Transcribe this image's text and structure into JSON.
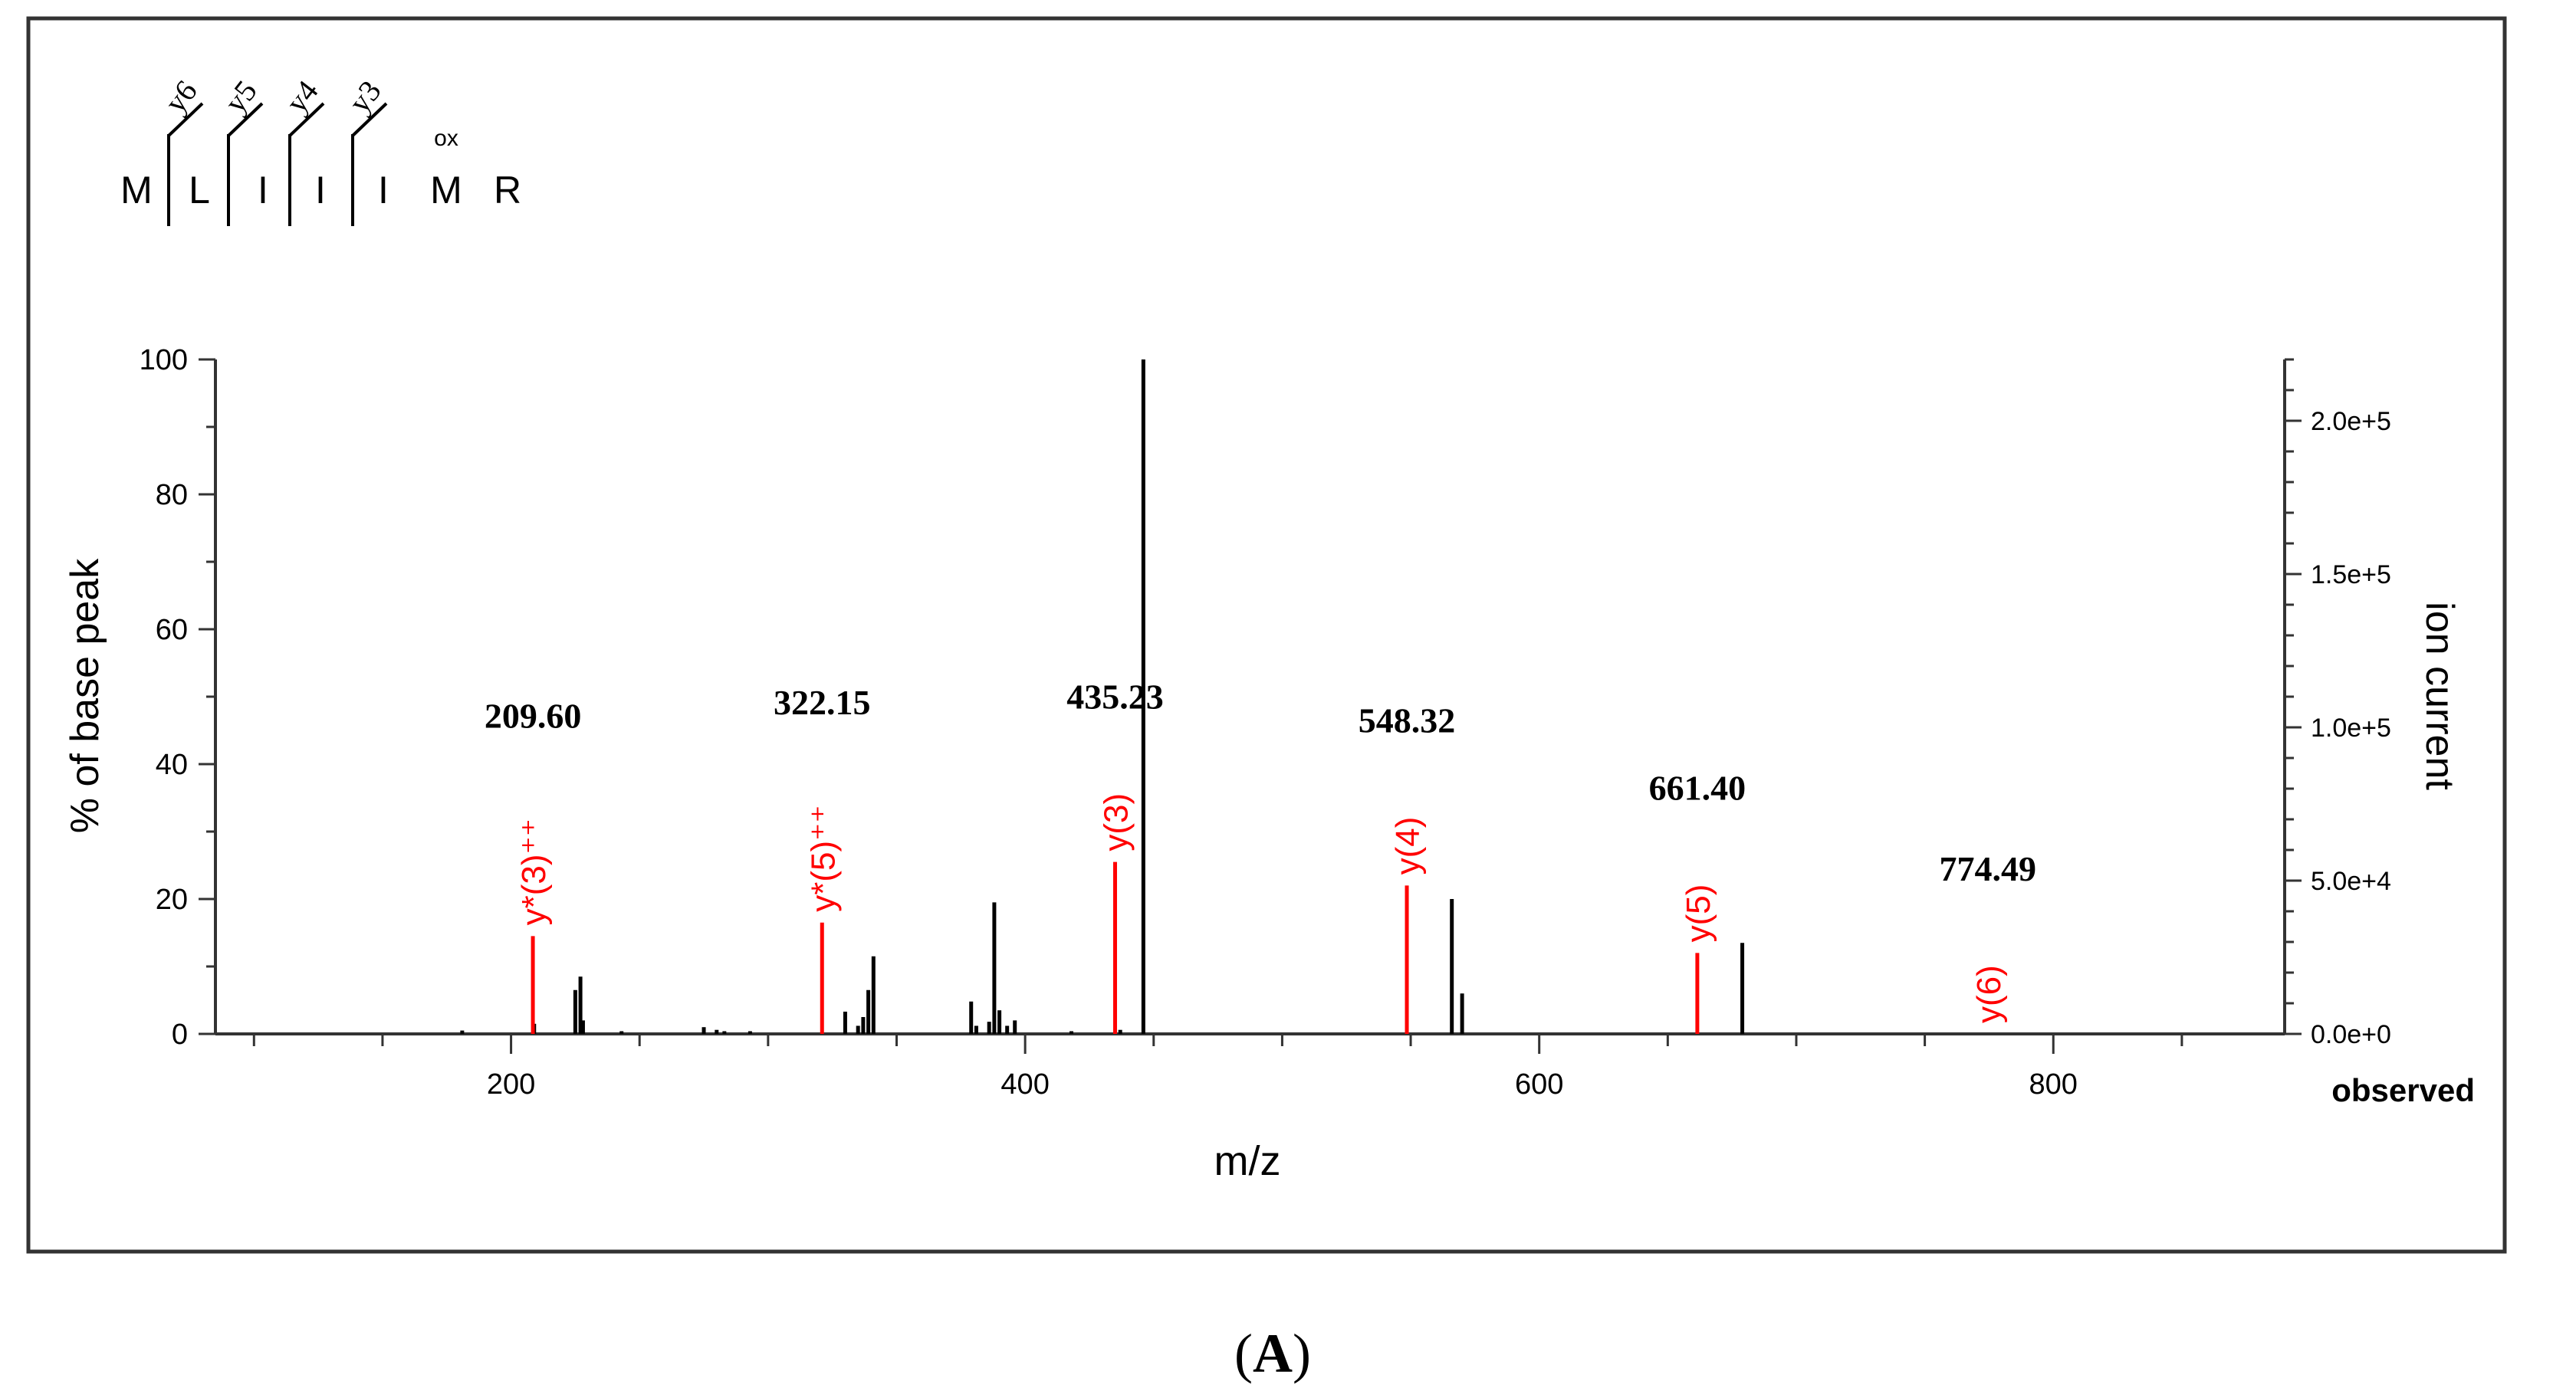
{
  "chart_data": {
    "type": "bar",
    "subtype": "mass-spectrum",
    "panel_label": "(A)",
    "panel_letter": "A",
    "peptide": {
      "residues": [
        "M",
        "L",
        "I",
        "I",
        "I",
        "M",
        "R"
      ],
      "modification": {
        "residue_index": 5,
        "label": "ox"
      },
      "fragment_labels": [
        "y6",
        "y5",
        "y4",
        "y3"
      ]
    },
    "xlabel": "m/z",
    "ylabel_left": "% of base peak",
    "ylabel_right": "ion current",
    "legend_label": "observed",
    "xlim": [
      85,
      890
    ],
    "ylim": [
      0,
      100
    ],
    "y_right_lim": [
      0,
      220000
    ],
    "x_ticks_major": [
      200,
      400,
      600,
      800
    ],
    "x_tick_labels": [
      "200",
      "400",
      "600",
      "800"
    ],
    "x_ticks_minor": [
      100,
      150,
      250,
      300,
      350,
      450,
      500,
      550,
      650,
      700,
      750,
      850
    ],
    "y_ticks": [
      0,
      20,
      40,
      60,
      80,
      100
    ],
    "y_tick_labels": [
      "0",
      "20",
      "40",
      "60",
      "80",
      "100"
    ],
    "y_right_ticks": [
      0,
      50000,
      100000,
      150000,
      200000
    ],
    "y_right_tick_labels": [
      "0.0e+0",
      "5.0e+4",
      "1.0e+5",
      "1.5e+5",
      "2.0e+5"
    ],
    "y_right_minor_step": 10000,
    "colors": {
      "annotated": "#ff0000",
      "observed": "#000000",
      "frame": "#333333"
    },
    "peaks_observed": [
      {
        "mz": 181,
        "i": 0.5
      },
      {
        "mz": 209,
        "i": 1.5
      },
      {
        "mz": 225,
        "i": 6.5
      },
      {
        "mz": 227,
        "i": 8.5
      },
      {
        "mz": 228,
        "i": 2
      },
      {
        "mz": 243,
        "i": 0.4
      },
      {
        "mz": 275,
        "i": 1
      },
      {
        "mz": 280,
        "i": 0.6
      },
      {
        "mz": 283,
        "i": 0.4
      },
      {
        "mz": 293,
        "i": 0.4
      },
      {
        "mz": 330,
        "i": 3.3
      },
      {
        "mz": 335,
        "i": 1.2
      },
      {
        "mz": 337,
        "i": 2.5
      },
      {
        "mz": 339,
        "i": 6.5
      },
      {
        "mz": 341,
        "i": 11.5
      },
      {
        "mz": 379,
        "i": 4.8
      },
      {
        "mz": 381,
        "i": 1.2
      },
      {
        "mz": 386,
        "i": 1.8
      },
      {
        "mz": 388,
        "i": 19.5
      },
      {
        "mz": 390,
        "i": 3.5
      },
      {
        "mz": 393,
        "i": 1.2
      },
      {
        "mz": 396,
        "i": 2
      },
      {
        "mz": 418,
        "i": 0.4
      },
      {
        "mz": 437,
        "i": 0.6
      },
      {
        "mz": 446,
        "i": 100
      },
      {
        "mz": 566,
        "i": 20
      },
      {
        "mz": 570,
        "i": 6
      },
      {
        "mz": 679,
        "i": 13.5
      }
    ],
    "peaks_annotated": [
      {
        "mz": 208.5,
        "i": 14.5,
        "label": "y*(3)⁺⁺",
        "mz_label": "209.60"
      },
      {
        "mz": 321.0,
        "i": 16.5,
        "label": "y*(5)⁺⁺",
        "mz_label": "322.15"
      },
      {
        "mz": 435.0,
        "i": 25.5,
        "label": "y(3)",
        "mz_label": "435.23"
      },
      {
        "mz": 548.5,
        "i": 22.0,
        "label": "y(4)",
        "mz_label": "548.32"
      },
      {
        "mz": 661.5,
        "i": 12.0,
        "label": "y(5)",
        "mz_label": "661.40"
      },
      {
        "mz": 774.5,
        "i": 0,
        "label": "y(6)",
        "mz_label": "774.49"
      }
    ]
  }
}
